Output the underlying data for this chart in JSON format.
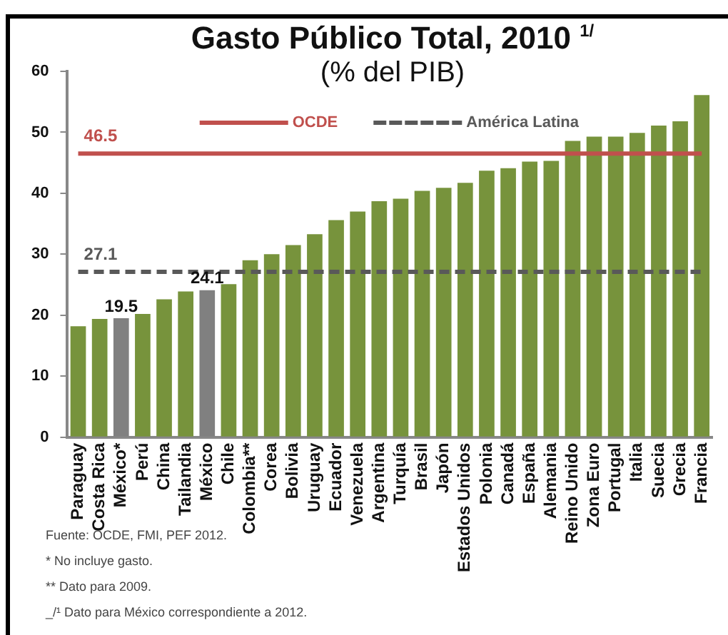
{
  "chart_data": {
    "type": "bar",
    "title": "Gasto Público Total, 2010 $^{1/}$",
    "subtitle": "(% del PIB)",
    "categories": [
      "Paraguay",
      "Costa Rica",
      "México*",
      "Perú",
      "China",
      "Tailandia",
      "México",
      "Chile",
      "Colombia**",
      "Corea",
      "Bolivia",
      "Uruguay",
      "Ecuador",
      "Venezuela",
      "Argentina",
      "Turquía",
      "Brasil",
      "Japón",
      "Estados Unidos",
      "Polonia",
      "Canadá",
      "España",
      "Alemania",
      "Reino Unido",
      "Zona Euro",
      "Portugal",
      "Italia",
      "Suecia",
      "Grecia",
      "Francia"
    ],
    "series": [
      {
        "colors": [
          "#77933c",
          "#77933c",
          "#808080",
          "#77933c",
          "#77933c",
          "#77933c",
          "#808080",
          "#77933c",
          "#77933c",
          "#77933c",
          "#77933c",
          "#77933c",
          "#77933c",
          "#77933c",
          "#77933c",
          "#77933c",
          "#77933c",
          "#77933c",
          "#77933c",
          "#77933c",
          "#77933c",
          "#77933c",
          "#77933c",
          "#77933c",
          "#77933c",
          "#77933c",
          "#77933c",
          "#77933c",
          "#77933c",
          "#77933c"
        ],
        "values": [
          18.2,
          19.4,
          19.5,
          20.2,
          22.6,
          23.9,
          24.1,
          25.1,
          29.0,
          30.0,
          31.5,
          33.3,
          35.6,
          37.0,
          38.7,
          39.1,
          40.4,
          40.9,
          41.7,
          43.7,
          44.1,
          45.2,
          45.3,
          48.6,
          49.3,
          49.3,
          49.9,
          51.1,
          51.8,
          56.1
        ],
        "value_labels": [
          null,
          null,
          "19.5",
          null,
          null,
          null,
          "24.1",
          null,
          null,
          null,
          null,
          null,
          null,
          null,
          null,
          null,
          null,
          null,
          null,
          null,
          null,
          null,
          null,
          null,
          null,
          null,
          null,
          null,
          null,
          null
        ]
      },
      {
        "type": "line",
        "name": "OCDE",
        "color": "#c0504d",
        "line_style": "solid",
        "values": [
          46.5,
          46.5,
          46.5,
          46.5,
          46.5,
          46.5,
          46.5,
          46.5,
          46.5,
          46.5,
          46.5,
          46.5,
          46.5,
          46.5,
          46.5,
          46.5,
          46.5,
          46.5,
          46.5,
          46.5,
          46.5,
          46.5,
          46.5,
          46.5,
          46.5,
          46.5,
          46.5,
          46.5,
          46.5,
          46.5
        ],
        "value_labels": [
          "46.5",
          null,
          null,
          null,
          null,
          null,
          null,
          null,
          null,
          null,
          null,
          null,
          null,
          null,
          null,
          null,
          null,
          null,
          null,
          null,
          null,
          null,
          null,
          null,
          null,
          null,
          null,
          null,
          null,
          null
        ]
      },
      {
        "type": "line",
        "name": "América Latina",
        "color": "#595959",
        "line_style": "dashed",
        "values": [
          27.1,
          27.1,
          27.1,
          27.1,
          27.1,
          27.1,
          27.1,
          27.1,
          27.1,
          27.1,
          27.1,
          27.1,
          27.1,
          27.1,
          27.1,
          27.1,
          27.1,
          27.1,
          27.1,
          27.1,
          27.1,
          27.1,
          27.1,
          27.1,
          27.1,
          27.1,
          27.1,
          27.1,
          27.1,
          27.1
        ],
        "value_labels": [
          "27.1",
          null,
          null,
          null,
          null,
          null,
          null,
          null,
          null,
          null,
          null,
          null,
          null,
          null,
          null,
          null,
          null,
          null,
          null,
          null,
          null,
          null,
          null,
          null,
          null,
          null,
          null,
          null,
          null,
          null
        ]
      }
    ],
    "ylim": [
      0,
      60
    ],
    "yticks": [
      0,
      10,
      20,
      30,
      40,
      50,
      60
    ],
    "grid": false,
    "legend": "top",
    "annotations": [
      "Fuente: OCDE, FMI, PEF 2012.",
      "* No incluye gasto.",
      "** Dato para 2009.",
      "_/¹ Dato para México correspondiente a 2012."
    ]
  }
}
